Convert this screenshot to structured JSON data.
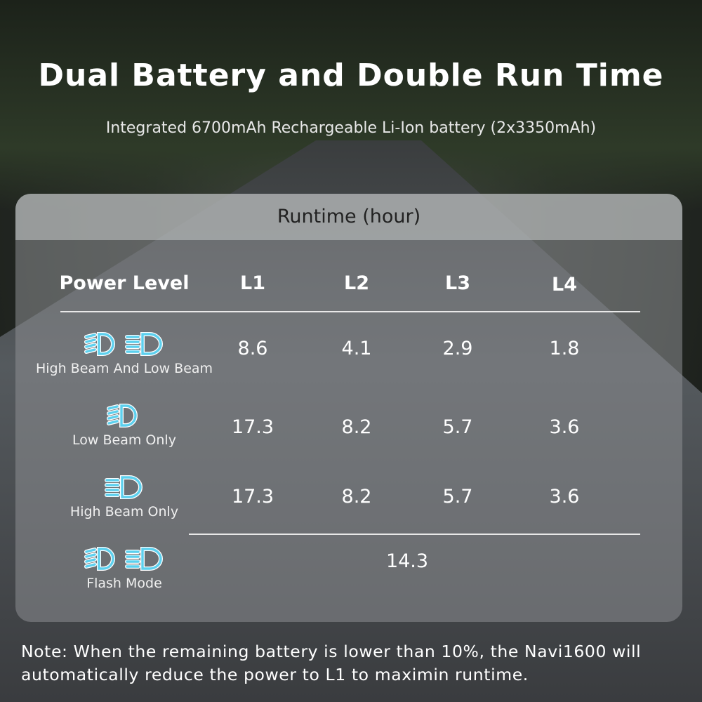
{
  "title": "Dual Battery and Double Run Time",
  "subtitle": "Integrated 6700mAh Rechargeable Li-Ion battery (2x3350mAh)",
  "table": {
    "caption": "Runtime (hour)",
    "header": [
      "Power Level",
      "L1",
      "L2",
      "L3",
      "L4"
    ],
    "rows": [
      {
        "label": "High Beam And Low Beam",
        "icons": [
          "low-beam-icon",
          "high-beam-icon"
        ],
        "values": [
          "8.6",
          "4.1",
          "2.9",
          "1.8"
        ]
      },
      {
        "label": "Low Beam Only",
        "icons": [
          "low-beam-icon"
        ],
        "values": [
          "17.3",
          "8.2",
          "5.7",
          "3.6"
        ]
      },
      {
        "label": "High Beam Only",
        "icons": [
          "high-beam-icon"
        ],
        "values": [
          "17.3",
          "8.2",
          "5.7",
          "3.6"
        ]
      },
      {
        "label": "Flash Mode",
        "icons": [
          "low-beam-icon",
          "high-beam-icon"
        ],
        "values": [
          "14.3"
        ]
      }
    ]
  },
  "note": "Note: When the remaining battery is lower than 10%, the Navi1600 will automatically reduce the power to L1 to maximin runtime.",
  "colors": {
    "icon": "#5cd0ee"
  }
}
